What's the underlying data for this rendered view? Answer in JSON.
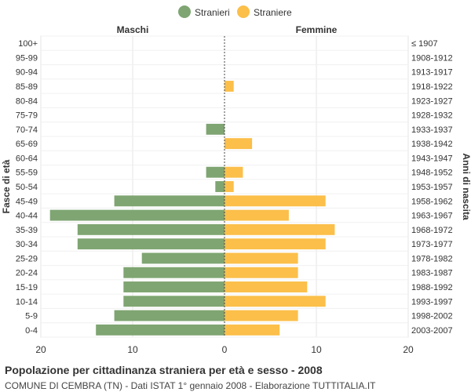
{
  "chart_data": {
    "type": "bar",
    "orientation": "horizontal-pyramid",
    "title": "Popolazione per cittadinanza straniera per età e sesso - 2008",
    "subtitle": "COMUNE DI CEMBRA (TN) - Dati ISTAT 1° gennaio 2008 - Elaborazione TUTTITALIA.IT",
    "ylabel_left": "Fasce di età",
    "ylabel_right": "Anni di nascita",
    "left_header": "Maschi",
    "right_header": "Femmine",
    "categories": [
      "100+",
      "95-99",
      "90-94",
      "85-89",
      "80-84",
      "75-79",
      "70-74",
      "65-69",
      "60-64",
      "55-59",
      "50-54",
      "45-49",
      "40-44",
      "35-39",
      "30-34",
      "25-29",
      "20-24",
      "15-19",
      "10-14",
      "5-9",
      "0-4"
    ],
    "birth_years": [
      "≤ 1907",
      "1908-1912",
      "1913-1917",
      "1918-1922",
      "1923-1927",
      "1928-1932",
      "1933-1937",
      "1938-1942",
      "1943-1947",
      "1948-1952",
      "1953-1957",
      "1958-1962",
      "1963-1967",
      "1968-1972",
      "1973-1977",
      "1978-1982",
      "1983-1987",
      "1988-1992",
      "1993-1997",
      "1998-2002",
      "2003-2007"
    ],
    "series": [
      {
        "name": "Stranieri",
        "color": "#7fa572",
        "side": "left",
        "values": [
          0,
          0,
          0,
          0,
          0,
          0,
          2,
          0,
          0,
          2,
          1,
          12,
          19,
          16,
          16,
          9,
          11,
          11,
          11,
          12,
          14
        ]
      },
      {
        "name": "Straniere",
        "color": "#fbbf4a",
        "side": "right",
        "values": [
          0,
          0,
          0,
          1,
          0,
          0,
          0,
          3,
          0,
          2,
          1,
          11,
          7,
          12,
          11,
          8,
          8,
          9,
          11,
          8,
          6
        ]
      }
    ],
    "xlim": [
      -20,
      20
    ],
    "xticks": [
      20,
      10,
      0,
      10,
      20
    ],
    "grid": true,
    "legend": "top-center"
  }
}
